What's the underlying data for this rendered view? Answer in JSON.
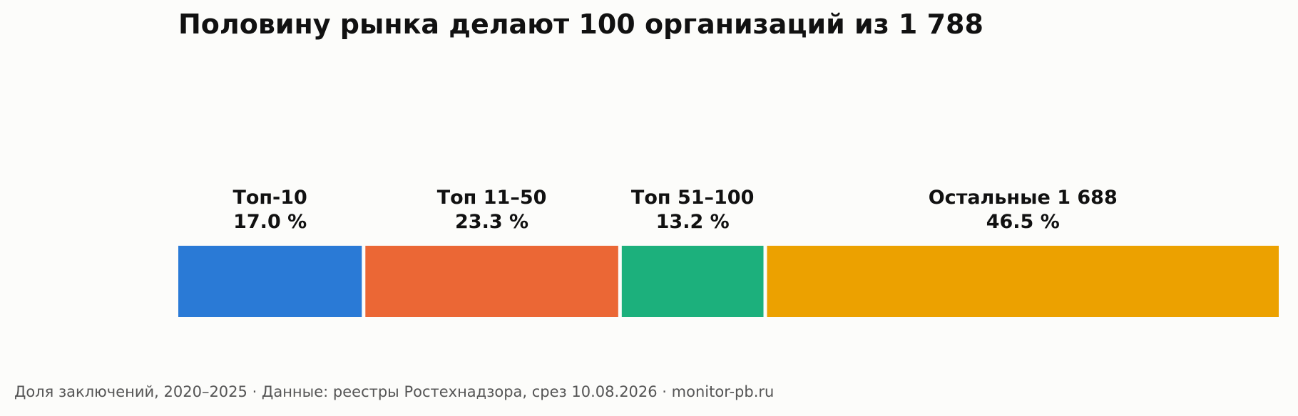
{
  "title": "Половину рынка делают 100 организаций из 1 788",
  "footer": "Доля заключений, 2020–2025 · Данные: реестры Ростехнадзора, срез 10.08.2026 · monitor-pb.ru",
  "chart_data": {
    "type": "bar",
    "orientation": "horizontal-stacked",
    "unit": "%",
    "categories": [
      "Топ-10",
      "Топ 11–50",
      "Топ 51–100",
      "Остальные 1 688"
    ],
    "values": [
      17.0,
      23.3,
      13.2,
      46.5
    ],
    "value_labels": [
      "17.0 %",
      "23.3 %",
      "13.2 %",
      "46.5 %"
    ],
    "colors": [
      "#2a7ad6",
      "#eb6735",
      "#1cb07c",
      "#eca100"
    ],
    "xlim": [
      0,
      100
    ],
    "grid": false
  }
}
